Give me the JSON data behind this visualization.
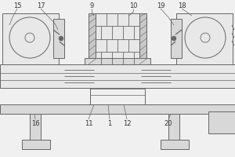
{
  "bg_color": "#f0f0f0",
  "line_color": "#666666",
  "fill_light": "#e8e8e8",
  "fill_mid": "#d8d8d8",
  "fill_dark": "#c8c8c8",
  "lw": 0.7,
  "fig_w": 3.0,
  "fig_h": 2.0,
  "dpi": 100
}
